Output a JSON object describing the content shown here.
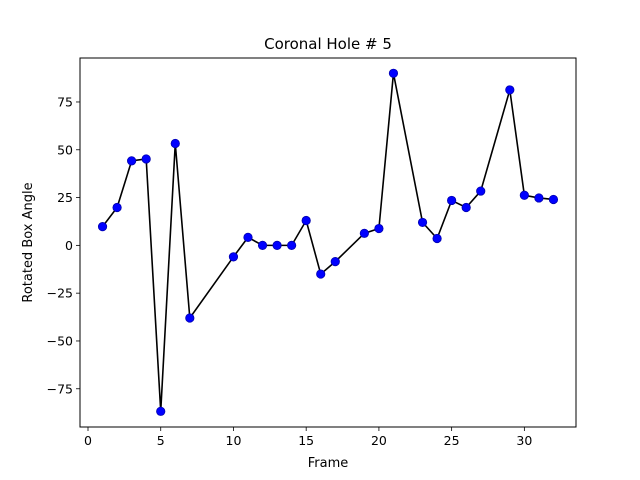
{
  "chart_data": {
    "type": "line",
    "title": "Coronal Hole # 5",
    "xlabel": "Frame",
    "ylabel": "Rotated Box Angle",
    "xlim": [
      -0.55,
      33.55
    ],
    "ylim": [
      -95,
      98
    ],
    "xticks": [
      0,
      5,
      10,
      15,
      20,
      25,
      30
    ],
    "yticks": [
      -75,
      -50,
      -25,
      0,
      25,
      50,
      75
    ],
    "grid": false,
    "line_color": "#000000",
    "marker_color": "#0000ff",
    "series": [
      {
        "x": [
          1,
          2,
          3,
          4,
          5,
          6,
          7,
          10,
          11,
          12,
          13,
          14,
          15,
          16,
          17,
          19,
          20,
          21,
          23,
          24,
          25,
          26,
          27,
          29,
          30,
          31,
          32
        ],
        "y": [
          9.8,
          19.8,
          44.2,
          45.2,
          -86.8,
          53.3,
          -38.0,
          -6.0,
          4.2,
          0.0,
          0.0,
          0.0,
          13.0,
          -15.0,
          -8.5,
          6.3,
          8.8,
          90.0,
          12.0,
          3.6,
          23.5,
          19.8,
          28.4,
          81.3,
          26.2,
          24.8,
          24.0
        ]
      }
    ]
  }
}
